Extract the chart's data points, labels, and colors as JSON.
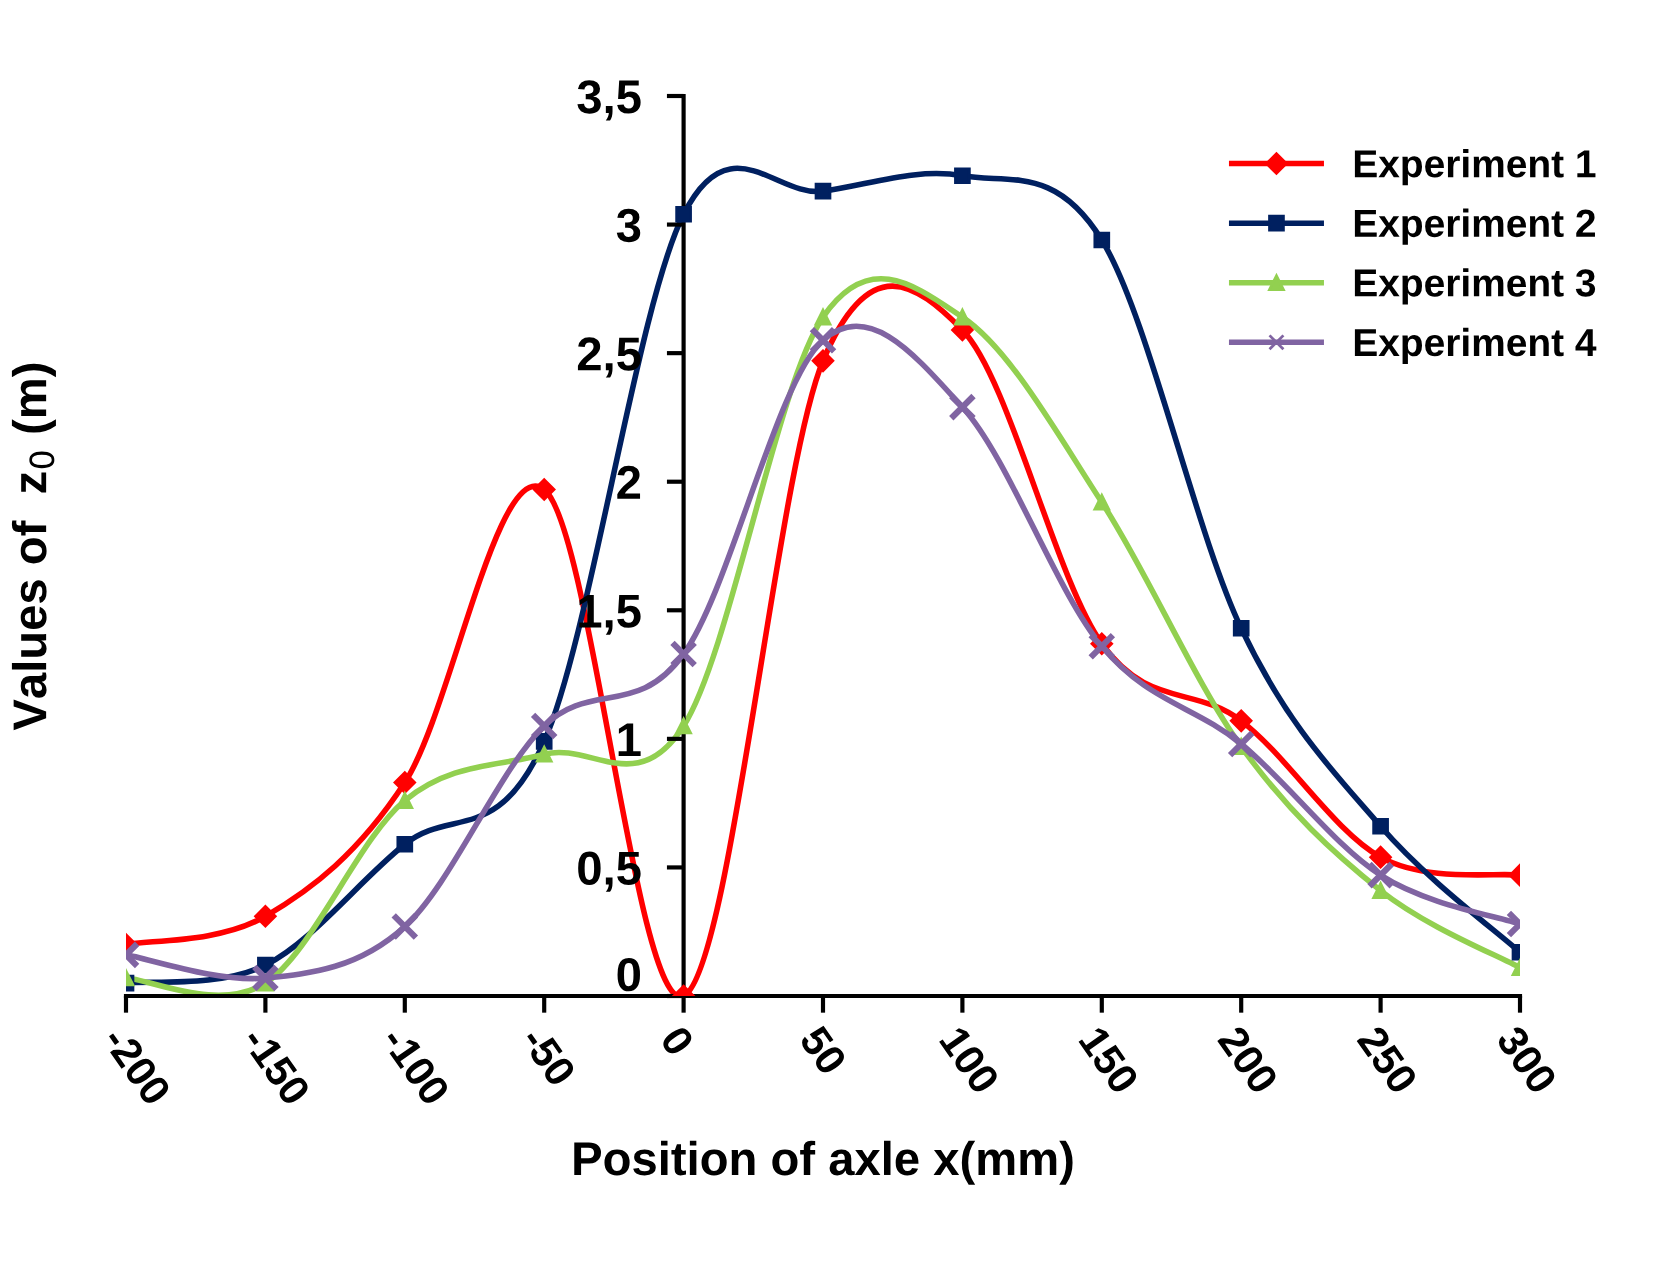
{
  "chart_data": {
    "type": "line",
    "xlabel": "Position of axle x(mm)",
    "ylabel": "Values of  z$_{0}$ (m)",
    "x": [
      -200,
      -150,
      -100,
      -50,
      0,
      50,
      100,
      150,
      200,
      250,
      300
    ],
    "series": [
      {
        "name": "Experiment 1",
        "color": "#ff0000",
        "marker": "diamond",
        "values": [
          0.2,
          0.31,
          0.83,
          1.97,
          0,
          2.47,
          2.59,
          1.37,
          1.07,
          0.54,
          0.47
        ]
      },
      {
        "name": "Experiment 2",
        "color": "#002060",
        "marker": "square",
        "values": [
          0.05,
          0.12,
          0.59,
          0.99,
          3.04,
          3.13,
          3.19,
          2.94,
          1.43,
          0.66,
          0.17
        ]
      },
      {
        "name": "Experiment 3",
        "color": "#92d050",
        "marker": "triangle",
        "values": [
          0.07,
          0.05,
          0.76,
          0.94,
          1.05,
          2.64,
          2.64,
          1.92,
          0.97,
          0.41,
          0.11
        ]
      },
      {
        "name": "Experiment 4",
        "color": "#8064a2",
        "marker": "cross",
        "values": [
          0.16,
          0.07,
          0.27,
          1.05,
          1.33,
          2.55,
          2.29,
          1.36,
          0.98,
          0.47,
          0.28
        ]
      }
    ],
    "xlim": [
      -200,
      300
    ],
    "xticks": [
      -200,
      -150,
      -100,
      -50,
      0,
      50,
      100,
      150,
      200,
      250,
      300
    ],
    "ylim": [
      0,
      3.5
    ],
    "yticks": [
      0,
      {
        "value": 0.5,
        "label": "0,5"
      },
      1,
      {
        "value": 1.5,
        "label": "1,5"
      },
      2,
      {
        "value": 2.5,
        "label": "2,5"
      },
      3,
      {
        "value": 3.5,
        "label": "3,5"
      }
    ],
    "grid": false,
    "legend": "top right",
    "line_style": "solid"
  }
}
